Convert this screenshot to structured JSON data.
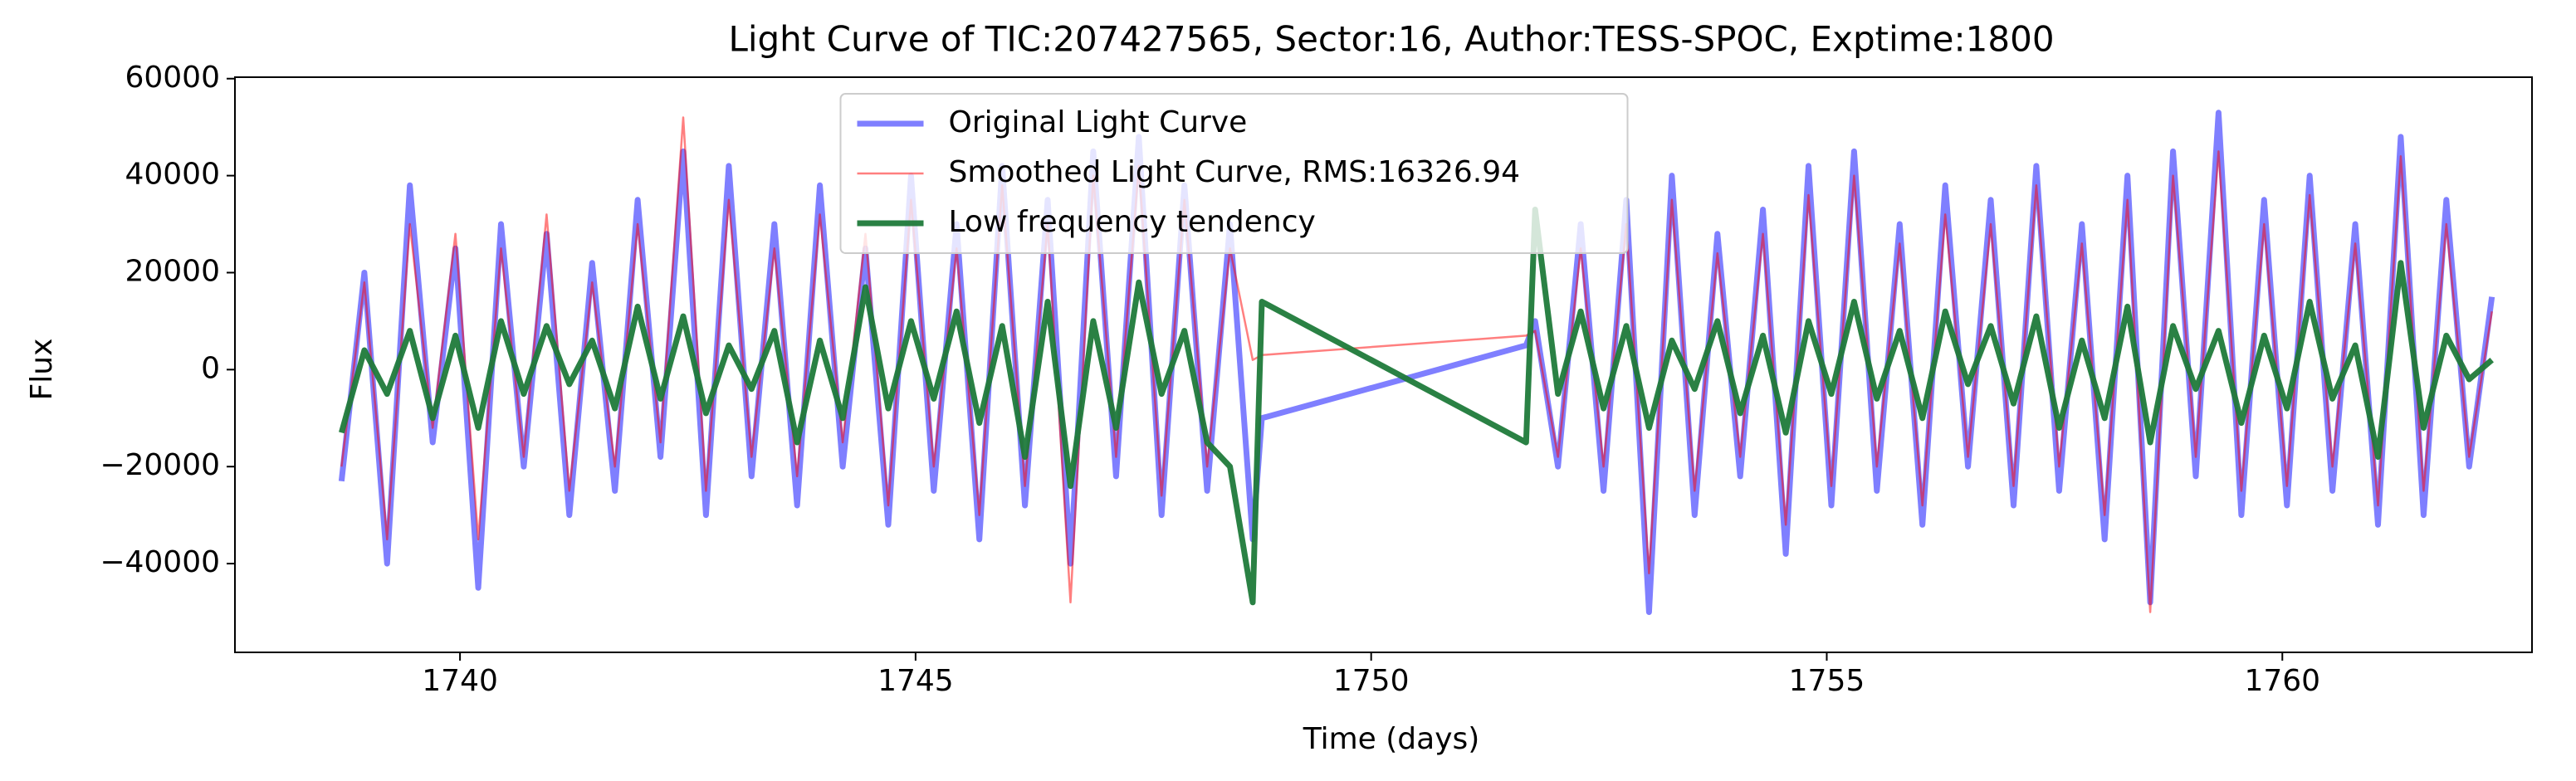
{
  "chart_data": {
    "type": "line",
    "title": "Light Curve of TIC:207427565, Sector:16, Author:TESS-SPOC, Exptime:1800",
    "x_label": "Time (days)",
    "y_label": "Flux",
    "xlim": [
      1737.53,
      1762.74
    ],
    "ylim": [
      -58300,
      60300
    ],
    "xticks": [
      1740,
      1745,
      1750,
      1755,
      1760
    ],
    "yticks": [
      {
        "value": -40000,
        "label": "−40000"
      },
      {
        "value": -20000,
        "label": "−20000"
      },
      0,
      20000,
      40000,
      60000
    ],
    "grid": false,
    "legend": "upper center",
    "x": [
      1738.7,
      1738.95,
      1739.2,
      1739.45,
      1739.7,
      1739.95,
      1740.2,
      1740.45,
      1740.7,
      1740.95,
      1741.2,
      1741.45,
      1741.7,
      1741.95,
      1742.2,
      1742.45,
      1742.7,
      1742.95,
      1743.2,
      1743.45,
      1743.7,
      1743.95,
      1744.2,
      1744.45,
      1744.7,
      1744.95,
      1745.2,
      1745.45,
      1745.7,
      1745.95,
      1746.2,
      1746.45,
      1746.7,
      1746.95,
      1747.2,
      1747.45,
      1747.7,
      1747.95,
      1748.2,
      1748.45,
      1748.7,
      1748.8,
      1751.7,
      1751.8,
      1752.05,
      1752.3,
      1752.55,
      1752.8,
      1753.05,
      1753.3,
      1753.55,
      1753.8,
      1754.05,
      1754.3,
      1754.55,
      1754.8,
      1755.05,
      1755.3,
      1755.55,
      1755.8,
      1756.05,
      1756.3,
      1756.55,
      1756.8,
      1757.05,
      1757.3,
      1757.55,
      1757.8,
      1758.05,
      1758.3,
      1758.55,
      1758.8,
      1759.05,
      1759.3,
      1759.55,
      1759.8,
      1760.05,
      1760.3,
      1760.55,
      1760.8,
      1761.05,
      1761.3,
      1761.55,
      1761.8,
      1762.05,
      1762.3
    ],
    "series": [
      {
        "name": "Original Light Curve",
        "color": "#0000ff",
        "opacity": 0.5,
        "values": [
          -23000,
          20000,
          -40000,
          38000,
          -15000,
          25000,
          -45000,
          30000,
          -20000,
          28000,
          -30000,
          22000,
          -25000,
          35000,
          -18000,
          45000,
          -30000,
          42000,
          -22000,
          30000,
          -28000,
          38000,
          -20000,
          25000,
          -32000,
          40000,
          -25000,
          30000,
          -35000,
          42000,
          -28000,
          35000,
          -40000,
          45000,
          -22000,
          48000,
          -30000,
          38000,
          -25000,
          30000,
          -35000,
          -10000,
          5000,
          10000,
          -20000,
          30000,
          -25000,
          35000,
          -50000,
          40000,
          -30000,
          28000,
          -22000,
          33000,
          -38000,
          42000,
          -28000,
          45000,
          -25000,
          30000,
          -32000,
          38000,
          -20000,
          35000,
          -28000,
          42000,
          -25000,
          30000,
          -35000,
          40000,
          -48000,
          45000,
          -22000,
          53000,
          -30000,
          35000,
          -28000,
          40000,
          -25000,
          30000,
          -32000,
          48000,
          -30000,
          35000,
          -20000,
          15000
        ]
      },
      {
        "name": "Smoothed Light Curve, RMS:16326.94",
        "color": "#ff0000",
        "opacity": 0.5,
        "values": [
          -20000,
          18000,
          -35000,
          30000,
          -12000,
          28000,
          -35000,
          25000,
          -18000,
          32000,
          -25000,
          18000,
          -20000,
          30000,
          -15000,
          52000,
          -25000,
          35000,
          -18000,
          25000,
          -22000,
          32000,
          -15000,
          28000,
          -28000,
          35000,
          -20000,
          25000,
          -30000,
          38000,
          -24000,
          30000,
          -48000,
          40000,
          -18000,
          42000,
          -26000,
          35000,
          -20000,
          25000,
          2000,
          3000,
          7000,
          8000,
          -18000,
          25000,
          -20000,
          30000,
          -42000,
          35000,
          -25000,
          24000,
          -18000,
          28000,
          -32000,
          36000,
          -24000,
          40000,
          -20000,
          26000,
          -28000,
          32000,
          -18000,
          30000,
          -24000,
          38000,
          -20000,
          26000,
          -30000,
          35000,
          -50000,
          40000,
          -18000,
          45000,
          -25000,
          30000,
          -24000,
          36000,
          -20000,
          26000,
          -28000,
          44000,
          -25000,
          30000,
          -18000,
          12000
        ]
      },
      {
        "name": "Low frequency tendency",
        "color": "#1f7a3a",
        "opacity": 0.95,
        "values": [
          -13000,
          4000,
          -5000,
          8000,
          -10000,
          7000,
          -12000,
          10000,
          -5000,
          9000,
          -3000,
          6000,
          -8000,
          13000,
          -6000,
          11000,
          -9000,
          5000,
          -4000,
          8000,
          -15000,
          6000,
          -10000,
          17000,
          -8000,
          10000,
          -6000,
          12000,
          -11000,
          9000,
          -18000,
          14000,
          -24000,
          10000,
          -12000,
          18000,
          -5000,
          8000,
          -15000,
          -20000,
          -48000,
          14000,
          -15000,
          33000,
          -5000,
          12000,
          -8000,
          9000,
          -12000,
          6000,
          -4000,
          10000,
          -9000,
          7000,
          -13000,
          10000,
          -5000,
          14000,
          -6000,
          8000,
          -10000,
          12000,
          -3000,
          9000,
          -7000,
          11000,
          -12000,
          6000,
          -10000,
          13000,
          -15000,
          9000,
          -4000,
          8000,
          -11000,
          7000,
          -8000,
          14000,
          -6000,
          5000,
          -18000,
          22000,
          -12000,
          7000,
          -2000,
          2000
        ]
      }
    ]
  }
}
